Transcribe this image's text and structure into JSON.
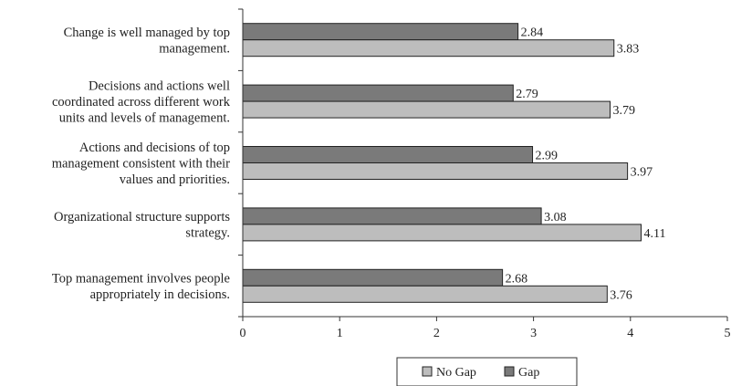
{
  "chart_data": {
    "type": "bar",
    "orientation": "horizontal",
    "categories": [
      [
        "Change is well managed by top",
        "management."
      ],
      [
        "Decisions and actions well",
        "coordinated across different work",
        "units and levels of management."
      ],
      [
        "Actions and decisions of top",
        "management consistent with their",
        "values and priorities."
      ],
      [
        "Organizational structure supports",
        "strategy."
      ],
      [
        "Top management involves people",
        "appropriately in decisions."
      ]
    ],
    "series": [
      {
        "name": "Gap",
        "values": [
          2.84,
          2.79,
          2.99,
          3.08,
          2.68
        ],
        "color": "#7a7a7a"
      },
      {
        "name": "No Gap",
        "values": [
          3.83,
          3.79,
          3.97,
          4.11,
          3.76
        ],
        "color": "#bdbdbd"
      }
    ],
    "xlim": [
      0,
      5
    ],
    "xticks": [
      "0",
      "1",
      "2",
      "3",
      "4",
      "5"
    ],
    "legend": {
      "placement": "bottom",
      "order": [
        "No Gap",
        "Gap"
      ]
    },
    "grid": false,
    "title": "",
    "xlabel": "",
    "ylabel": ""
  }
}
